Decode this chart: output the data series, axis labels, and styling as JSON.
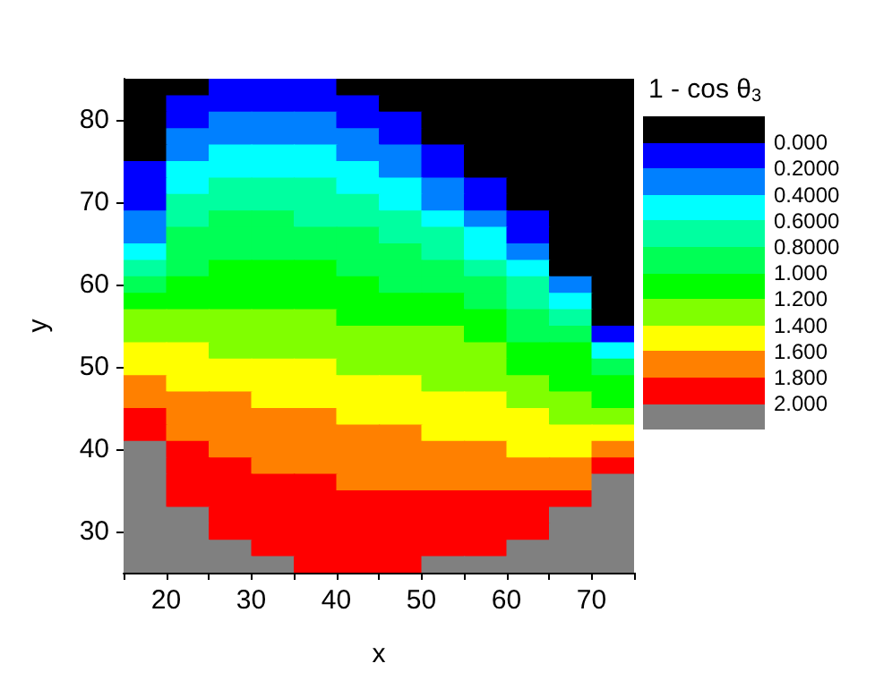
{
  "chart_data": {
    "type": "heatmap",
    "xlabel": "x",
    "ylabel": "y",
    "clabel": "1 - cos θ$_{3}$",
    "xlim": [
      15,
      75
    ],
    "xticks": [
      20,
      30,
      40,
      50,
      60,
      70
    ],
    "x": [
      17.5,
      22.5,
      27.5,
      32.5,
      37.5,
      42.5,
      47.5,
      52.5,
      57.5,
      62.5,
      67.5,
      72.5
    ],
    "y_categories": [
      null,
      null,
      "80",
      null,
      null,
      null,
      null,
      "70",
      null,
      null,
      null,
      null,
      "60",
      null,
      null,
      null,
      null,
      "50",
      null,
      null,
      null,
      null,
      "40",
      null,
      null,
      null,
      null,
      "30",
      null,
      null
    ],
    "clim": [
      -0.2,
      2.2
    ],
    "cticks": [
      {
        "value": 0,
        "label": "0.000"
      },
      {
        "value": 0.2,
        "label": "0.2000"
      },
      {
        "value": 0.4,
        "label": "0.4000"
      },
      {
        "value": 0.6,
        "label": "0.6000"
      },
      {
        "value": 0.8,
        "label": "0.8000"
      },
      {
        "value": 1.0,
        "label": "1.000"
      },
      {
        "value": 1.2,
        "label": "1.200"
      },
      {
        "value": 1.4,
        "label": "1.400"
      },
      {
        "value": 1.6,
        "label": "1.600"
      },
      {
        "value": 1.8,
        "label": "1.800"
      },
      {
        "value": 2.0,
        "label": "2.000"
      }
    ],
    "colors": [
      "#000000",
      "#0000ff",
      "#0080ff",
      "#00ffff",
      "#00ffa0",
      "#00ff55",
      "#00ff00",
      "#80ff00",
      "#ffff00",
      "#ff8000",
      "#ff0000",
      "#808080"
    ],
    "cells": [
      [
        -0.1,
        -0.1,
        0.1,
        0.1,
        0.1,
        -0.1,
        -0.1,
        -0.1,
        -0.1,
        -0.1,
        -0.1,
        -0.1
      ],
      [
        -0.1,
        0.1,
        0.1,
        0.1,
        0.1,
        0.1,
        -0.1,
        -0.1,
        -0.1,
        -0.1,
        -0.1,
        -0.1
      ],
      [
        -0.1,
        0.1,
        0.3,
        0.3,
        0.3,
        0.1,
        0.1,
        -0.1,
        -0.1,
        -0.1,
        -0.1,
        -0.1
      ],
      [
        -0.1,
        0.3,
        0.3,
        0.3,
        0.3,
        0.3,
        0.1,
        -0.1,
        -0.1,
        -0.1,
        -0.1,
        -0.1
      ],
      [
        -0.1,
        0.3,
        0.5,
        0.5,
        0.5,
        0.3,
        0.3,
        0.1,
        -0.1,
        -0.1,
        -0.1,
        -0.1
      ],
      [
        0.1,
        0.5,
        0.5,
        0.5,
        0.5,
        0.5,
        0.3,
        0.1,
        -0.1,
        -0.1,
        -0.1,
        -0.1
      ],
      [
        0.1,
        0.5,
        0.7,
        0.7,
        0.7,
        0.5,
        0.5,
        0.3,
        0.1,
        -0.1,
        -0.1,
        -0.1
      ],
      [
        0.1,
        0.7,
        0.7,
        0.7,
        0.7,
        0.7,
        0.5,
        0.3,
        0.1,
        -0.1,
        -0.1,
        -0.1
      ],
      [
        0.3,
        0.7,
        0.9,
        0.9,
        0.7,
        0.7,
        0.7,
        0.5,
        0.3,
        0.1,
        -0.1,
        -0.1
      ],
      [
        0.3,
        0.9,
        0.9,
        0.9,
        0.9,
        0.9,
        0.7,
        0.7,
        0.5,
        0.1,
        -0.1,
        -0.1
      ],
      [
        0.5,
        0.9,
        0.9,
        0.9,
        0.9,
        0.9,
        0.9,
        0.7,
        0.5,
        0.3,
        -0.1,
        -0.1
      ],
      [
        0.7,
        0.9,
        1.1,
        1.1,
        1.1,
        0.9,
        0.9,
        0.9,
        0.7,
        0.5,
        -0.1,
        -0.1
      ],
      [
        0.9,
        1.1,
        1.1,
        1.1,
        1.1,
        1.1,
        0.9,
        0.9,
        0.9,
        0.7,
        0.3,
        -0.1
      ],
      [
        1.1,
        1.1,
        1.1,
        1.1,
        1.1,
        1.1,
        1.1,
        1.1,
        0.9,
        0.7,
        0.5,
        -0.1
      ],
      [
        1.3,
        1.3,
        1.3,
        1.3,
        1.3,
        1.1,
        1.1,
        1.1,
        1.1,
        0.9,
        0.7,
        -0.1
      ],
      [
        1.3,
        1.3,
        1.3,
        1.3,
        1.3,
        1.3,
        1.3,
        1.3,
        1.1,
        0.9,
        0.9,
        0.1
      ],
      [
        1.5,
        1.5,
        1.3,
        1.3,
        1.3,
        1.3,
        1.3,
        1.3,
        1.3,
        1.1,
        1.1,
        0.5
      ],
      [
        1.5,
        1.5,
        1.5,
        1.5,
        1.5,
        1.3,
        1.3,
        1.3,
        1.3,
        1.1,
        1.1,
        0.9
      ],
      [
        1.7,
        1.5,
        1.5,
        1.5,
        1.5,
        1.5,
        1.5,
        1.3,
        1.3,
        1.3,
        1.1,
        1.1
      ],
      [
        1.7,
        1.7,
        1.7,
        1.5,
        1.5,
        1.5,
        1.5,
        1.5,
        1.5,
        1.3,
        1.3,
        1.1
      ],
      [
        1.9,
        1.7,
        1.7,
        1.7,
        1.7,
        1.5,
        1.5,
        1.5,
        1.5,
        1.5,
        1.3,
        1.3
      ],
      [
        1.9,
        1.7,
        1.7,
        1.7,
        1.7,
        1.7,
        1.7,
        1.5,
        1.5,
        1.5,
        1.5,
        1.5
      ],
      [
        2.1,
        1.9,
        1.7,
        1.7,
        1.7,
        1.7,
        1.7,
        1.7,
        1.7,
        1.5,
        1.5,
        1.7
      ],
      [
        2.1,
        1.9,
        1.9,
        1.7,
        1.7,
        1.7,
        1.7,
        1.7,
        1.7,
        1.7,
        1.7,
        1.9
      ],
      [
        2.1,
        1.9,
        1.9,
        1.9,
        1.9,
        1.7,
        1.7,
        1.7,
        1.7,
        1.7,
        1.7,
        2.1
      ],
      [
        2.1,
        1.9,
        1.9,
        1.9,
        1.9,
        1.9,
        1.9,
        1.9,
        1.9,
        1.9,
        1.9,
        2.1
      ],
      [
        2.1,
        2.1,
        1.9,
        1.9,
        1.9,
        1.9,
        1.9,
        1.9,
        1.9,
        1.9,
        2.1,
        2.1
      ],
      [
        2.1,
        2.1,
        1.9,
        1.9,
        1.9,
        1.9,
        1.9,
        1.9,
        1.9,
        1.9,
        2.1,
        2.1
      ],
      [
        2.1,
        2.1,
        2.1,
        1.9,
        1.9,
        1.9,
        1.9,
        1.9,
        1.9,
        2.1,
        2.1,
        2.1
      ],
      [
        2.1,
        2.1,
        2.1,
        2.1,
        1.9,
        1.9,
        1.9,
        2.1,
        2.1,
        2.1,
        2.1,
        2.1
      ]
    ]
  }
}
